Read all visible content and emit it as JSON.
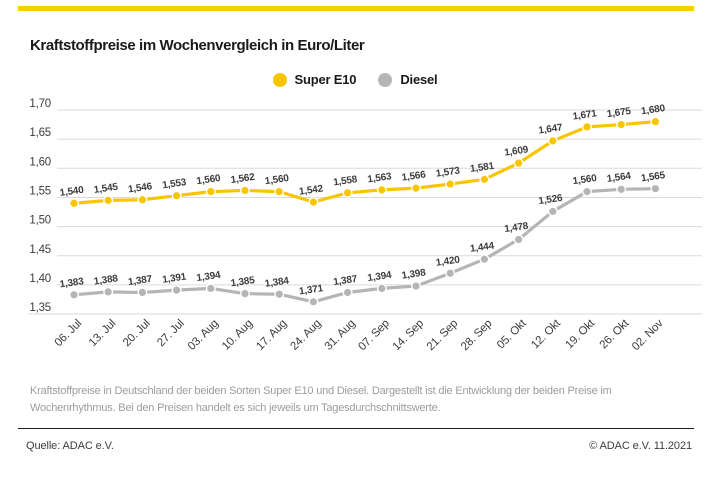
{
  "brand": {
    "bar_color": "#FFCC00"
  },
  "header": {
    "title": "Kraftstoffpreise im Wochenvergleich in Euro/Liter"
  },
  "legend": {
    "items": [
      {
        "label": "Super E10",
        "color": "#F8C500"
      },
      {
        "label": "Diesel",
        "color": "#B5B5B5"
      }
    ]
  },
  "chart_data": {
    "type": "line",
    "title": "Kraftstoffpreise im Wochenvergleich in Euro/Liter",
    "unit": "Euro/Liter",
    "x": [
      "06. Jul",
      "13. Jul",
      "20. Jul",
      "27. Jul",
      "03. Aug",
      "10. Aug",
      "17. Aug",
      "24. Aug",
      "31. Aug",
      "07. Sep",
      "14. Sep",
      "21. Sep",
      "28. Sep",
      "05. Okt",
      "12. Okt",
      "19. Okt",
      "26. Okt",
      "02. Nov"
    ],
    "series": [
      {
        "name": "Super E10",
        "color": "#F8C500",
        "values": [
          1.54,
          1.545,
          1.546,
          1.553,
          1.56,
          1.562,
          1.56,
          1.542,
          1.558,
          1.563,
          1.566,
          1.573,
          1.581,
          1.609,
          1.647,
          1.671,
          1.675,
          1.68
        ]
      },
      {
        "name": "Diesel",
        "color": "#B5B5B5",
        "values": [
          1.383,
          1.388,
          1.387,
          1.391,
          1.394,
          1.385,
          1.384,
          1.371,
          1.387,
          1.394,
          1.398,
          1.42,
          1.444,
          1.478,
          1.526,
          1.56,
          1.564,
          1.565
        ]
      }
    ],
    "ylim": [
      1.35,
      1.7
    ],
    "ytick_step": 0.05,
    "ytick_labels": [
      "1,70",
      "1,65",
      "1,60",
      "1,55",
      "1,50",
      "1,45",
      "1,40",
      "1,35"
    ],
    "grid": true,
    "gridline_color": "#DADADA",
    "legend_position": "top-center"
  },
  "description": "Kraftstoffpreise in Deutschland der beiden Sorten Super E10 und Diesel. Dargestellt ist die Entwicklung der beiden Preise im Wochenrhythmus. Bei den Preisen handelt es sich jeweils um Tagesdurchschnittswerte.",
  "footer": {
    "source": "Quelle: ADAC e.V.",
    "copyright": "© ADAC e.V. 11.2021"
  }
}
